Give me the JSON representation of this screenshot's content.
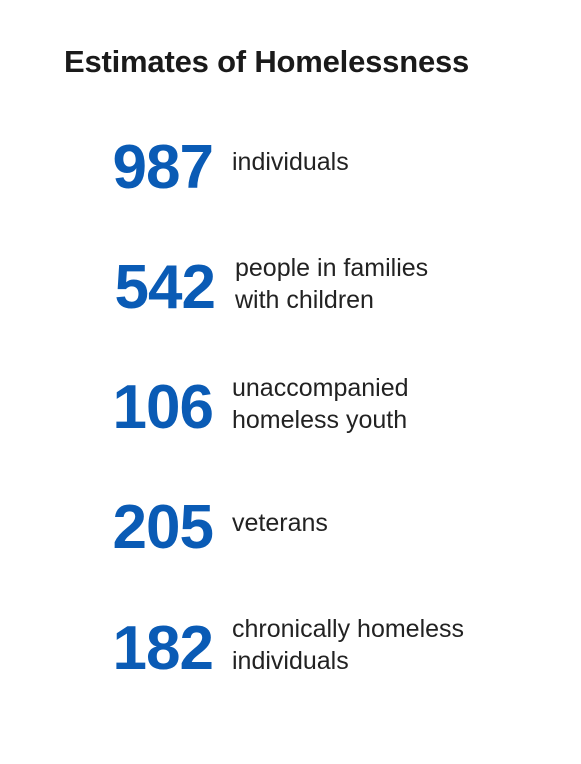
{
  "title": "Estimates of Homelessness",
  "stats": [
    {
      "value": "987",
      "label": "individuals"
    },
    {
      "value": "542",
      "label": "people in families\nwith children"
    },
    {
      "value": "106",
      "label": "unaccompanied\nhomeless youth"
    },
    {
      "value": "205",
      "label": "veterans"
    },
    {
      "value": "182",
      "label": "chronically homeless\nindividuals"
    }
  ],
  "colors": {
    "accent": "#0a5bb5",
    "text": "#222222",
    "background": "#ffffff"
  }
}
